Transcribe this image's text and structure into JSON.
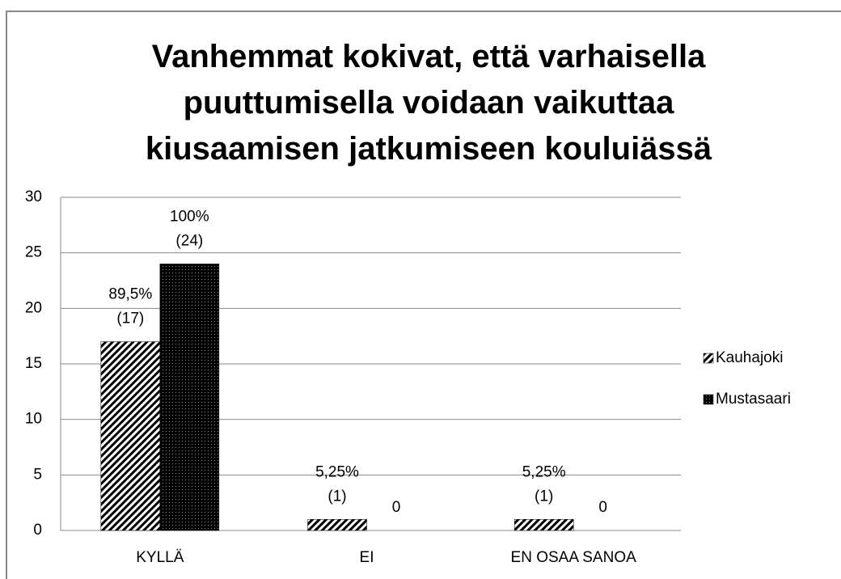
{
  "chart_data": {
    "type": "bar",
    "title": "Vanhemmat kokivat, että varhaisella\npuuttumisella voidaan vaikuttaa\nkiusaamisen jatkumiseen kouluiässä",
    "categories": [
      "KYLLÄ",
      "EI",
      "EN OSAA SANOA"
    ],
    "series": [
      {
        "name": "Kauhajoki",
        "color": "#000000",
        "pattern": "diagonal",
        "values": [
          17,
          1,
          1
        ],
        "value_labels": [
          "89,5%\n(17)",
          "5,25%\n(1)",
          "5,25%\n(1)"
        ]
      },
      {
        "name": "Mustasaari",
        "color": "#000000",
        "pattern": "dots",
        "values": [
          24,
          0,
          0
        ],
        "value_labels": [
          "100%\n(24)",
          "0",
          "0"
        ]
      }
    ],
    "ylim": [
      0,
      30
    ],
    "yticks": [
      0,
      5,
      10,
      15,
      20,
      25,
      30
    ],
    "grid": true,
    "legend": "right"
  }
}
